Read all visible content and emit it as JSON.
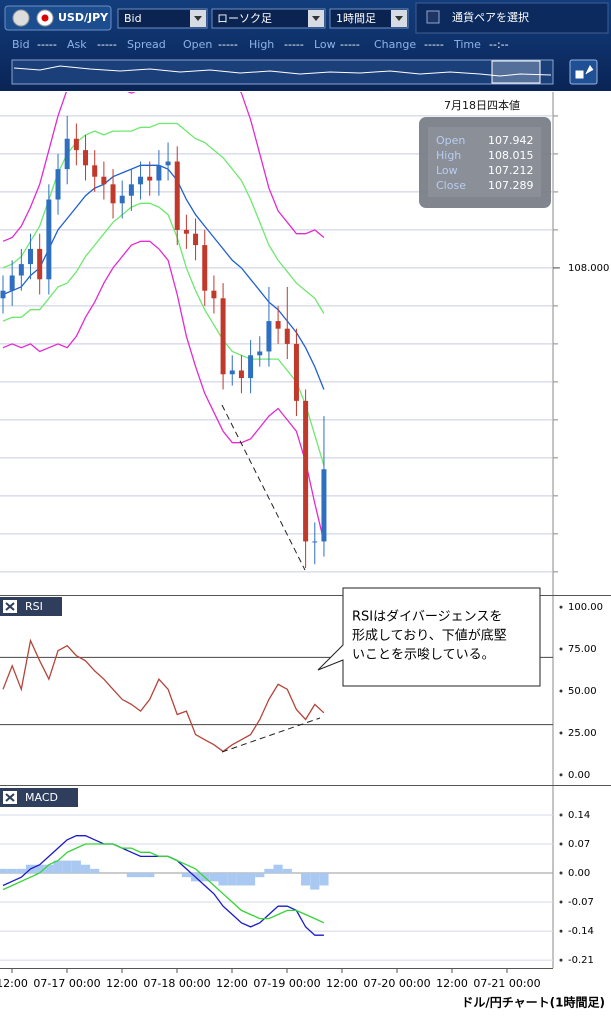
{
  "toolbar": {
    "pair": "USD/JPY",
    "price_type": "Bid",
    "chart_style": "ローソク足",
    "interval": "1時間足",
    "pair_select": "通貨ペアを選択",
    "quotes": [
      {
        "label": "Bid",
        "value": "-----"
      },
      {
        "label": "Ask",
        "value": "-----"
      },
      {
        "label": "Spread",
        "value": ""
      },
      {
        "label": "Open",
        "value": "-----"
      },
      {
        "label": "High",
        "value": "-----"
      },
      {
        "label": "Low",
        "value": "-----"
      },
      {
        "label": "Change",
        "value": "-----"
      },
      {
        "label": "Time",
        "value": "--:--"
      }
    ]
  },
  "info_box": {
    "title": "7月18日四本値",
    "rows": [
      {
        "label": "Open",
        "value": "107.942"
      },
      {
        "label": "High",
        "value": "108.015"
      },
      {
        "label": "Low",
        "value": "107.212"
      },
      {
        "label": "Close",
        "value": "107.289"
      }
    ]
  },
  "annotation": {
    "lines": [
      "RSIはダイバージェンスを",
      "形成しており、下値が底堅",
      "いことを示唆している。"
    ]
  },
  "x_axis": {
    "labels": [
      "12:00",
      "07-17 00:00",
      "12:00",
      "07-18 00:00",
      "12:00",
      "07-19 00:00",
      "12:00",
      "07-20 00:00",
      "12:00",
      "07-21 00:00"
    ]
  },
  "footer": "ドル/円チャート(1時間足)",
  "chart_data": [
    {
      "type": "candlestick",
      "up_color": "#2f6fbf",
      "down_color": "#c0392b",
      "open": [
        107.92,
        107.94,
        107.98,
        108.01,
        108.05,
        107.97,
        108.18,
        108.26,
        108.34,
        108.31,
        108.27,
        108.24,
        108.22,
        108.17,
        108.19,
        108.22,
        108.24,
        108.23,
        108.27,
        108.28,
        108.1,
        108.09,
        108.06,
        107.94,
        107.92,
        107.72,
        107.73,
        107.71,
        107.77,
        107.78,
        107.86,
        107.84,
        107.8,
        107.65,
        107.28,
        107.28
      ],
      "high": [
        107.98,
        108.02,
        108.05,
        108.09,
        108.09,
        108.22,
        108.3,
        108.4,
        108.38,
        108.35,
        108.31,
        108.28,
        108.26,
        108.23,
        108.26,
        108.28,
        108.28,
        108.31,
        108.33,
        108.32,
        108.14,
        108.13,
        108.1,
        107.98,
        107.96,
        107.77,
        107.77,
        107.81,
        107.82,
        107.95,
        107.9,
        107.95,
        107.84,
        107.68,
        107.33,
        107.61
      ],
      "low": [
        107.88,
        107.9,
        107.94,
        107.97,
        107.93,
        107.93,
        108.14,
        108.22,
        108.27,
        108.23,
        108.2,
        108.18,
        108.13,
        108.13,
        108.15,
        108.18,
        108.19,
        108.19,
        108.23,
        108.06,
        108.05,
        108.02,
        107.9,
        107.88,
        107.68,
        107.69,
        107.67,
        107.67,
        107.74,
        107.74,
        107.8,
        107.76,
        107.61,
        107.21,
        107.22,
        107.24
      ],
      "close": [
        107.94,
        107.98,
        108.01,
        108.05,
        107.97,
        108.18,
        108.26,
        108.34,
        108.31,
        108.27,
        108.24,
        108.22,
        108.17,
        108.19,
        108.22,
        108.24,
        108.23,
        108.27,
        108.28,
        108.1,
        108.09,
        108.06,
        107.94,
        107.92,
        107.72,
        107.73,
        107.71,
        107.77,
        107.78,
        107.86,
        107.84,
        107.8,
        107.65,
        107.28,
        107.28,
        107.47
      ],
      "overlays": [
        {
          "color": "#e22bd0",
          "values": [
            108.07,
            108.08,
            108.11,
            108.16,
            108.22,
            108.31,
            108.4,
            108.47,
            108.5,
            108.51,
            108.51,
            108.48,
            108.48,
            108.47,
            108.46,
            108.47,
            108.47,
            108.49,
            108.5,
            108.53,
            108.54,
            108.54,
            108.55,
            108.54,
            108.53,
            108.5,
            108.46,
            108.39,
            108.3,
            108.21,
            108.15,
            108.12,
            108.09,
            108.09,
            108.1,
            108.08
          ]
        },
        {
          "color": "#6ee86e",
          "values": [
            108.0,
            108.01,
            108.03,
            108.07,
            108.11,
            108.18,
            108.25,
            108.3,
            108.33,
            108.35,
            108.36,
            108.35,
            108.36,
            108.36,
            108.36,
            108.37,
            108.37,
            108.38,
            108.38,
            108.38,
            108.36,
            108.34,
            108.33,
            108.31,
            108.29,
            108.26,
            108.23,
            108.18,
            108.12,
            108.06,
            108.02,
            107.99,
            107.96,
            107.94,
            107.92,
            107.88
          ]
        },
        {
          "color": "#1f5fd0",
          "values": [
            107.93,
            107.94,
            107.95,
            107.98,
            108.0,
            108.05,
            108.1,
            108.13,
            108.16,
            108.19,
            108.21,
            108.22,
            108.24,
            108.25,
            108.26,
            108.27,
            108.27,
            108.27,
            108.26,
            108.23,
            108.18,
            108.14,
            108.11,
            108.08,
            108.05,
            108.02,
            108.0,
            107.97,
            107.94,
            107.91,
            107.89,
            107.86,
            107.83,
            107.79,
            107.74,
            107.68
          ]
        },
        {
          "color": "#6ee86e",
          "values": [
            107.86,
            107.87,
            107.87,
            107.89,
            107.89,
            107.92,
            107.95,
            107.96,
            107.99,
            108.03,
            108.06,
            108.09,
            108.12,
            108.14,
            108.16,
            108.17,
            108.17,
            108.16,
            108.14,
            108.08,
            108.0,
            107.94,
            107.89,
            107.85,
            107.81,
            107.78,
            107.77,
            107.76,
            107.76,
            107.76,
            107.76,
            107.73,
            107.7,
            107.64,
            107.56,
            107.48
          ]
        },
        {
          "color": "#e22bd0",
          "values": [
            107.79,
            107.8,
            107.79,
            107.8,
            107.78,
            107.79,
            107.8,
            107.79,
            107.82,
            107.87,
            107.91,
            107.96,
            108.0,
            108.03,
            108.06,
            108.07,
            108.07,
            108.05,
            108.02,
            107.93,
            107.82,
            107.74,
            107.67,
            107.62,
            107.57,
            107.54,
            107.54,
            107.55,
            107.58,
            107.61,
            107.63,
            107.6,
            107.57,
            107.49,
            107.38,
            107.28
          ]
        }
      ],
      "ylim": [
        107.139,
        108.463
      ],
      "yticks": [
        {
          "value": 108,
          "label": "108.000"
        }
      ],
      "grid_values": [
        107.2,
        107.3,
        107.4,
        107.5,
        107.6,
        107.7,
        107.8,
        107.9,
        108.0,
        108.1,
        108.2,
        108.3,
        108.4
      ],
      "grid": true
    },
    {
      "type": "line",
      "title": "RSI",
      "series": [
        {
          "color": "#b5443a",
          "values": [
            51,
            65,
            51,
            80,
            68,
            57,
            74,
            77,
            71,
            68,
            62,
            57,
            51,
            45,
            42,
            38,
            45,
            57,
            51,
            36,
            38,
            24,
            21,
            18,
            14,
            18,
            21,
            24,
            33,
            45,
            54,
            51,
            39,
            33,
            42,
            37
          ]
        }
      ],
      "ylim": [
        -6,
        105.4
      ],
      "yticks": [
        {
          "value": 100,
          "label": "100.00"
        },
        {
          "value": 75,
          "label": "75.00"
        },
        {
          "value": 50,
          "label": "50.00"
        },
        {
          "value": 25,
          "label": "25.00"
        },
        {
          "value": 0,
          "label": "0.00"
        }
      ],
      "levels": [
        70,
        30
      ]
    },
    {
      "type": "line",
      "title": "MACD",
      "series": [
        {
          "type": "bar",
          "color": "#a9c9f2",
          "values": [
            0.01,
            0.01,
            0.01,
            0.02,
            0.02,
            0.02,
            0.03,
            0.03,
            0.03,
            0.02,
            0.01,
            0.0,
            0.0,
            0.0,
            -0.01,
            -0.01,
            -0.01,
            0.0,
            0.0,
            0.0,
            -0.01,
            -0.02,
            -0.02,
            -0.02,
            -0.03,
            -0.03,
            -0.03,
            -0.03,
            -0.01,
            0.01,
            0.02,
            0.01,
            0.0,
            -0.03,
            -0.04,
            -0.03
          ]
        },
        {
          "color": "#1a1ac8",
          "values": [
            -0.03,
            -0.02,
            -0.01,
            0.01,
            0.02,
            0.04,
            0.06,
            0.08,
            0.09,
            0.09,
            0.08,
            0.07,
            0.07,
            0.06,
            0.05,
            0.04,
            0.04,
            0.04,
            0.04,
            0.03,
            0.01,
            -0.01,
            -0.03,
            -0.05,
            -0.08,
            -0.1,
            -0.12,
            -0.13,
            -0.12,
            -0.1,
            -0.08,
            -0.08,
            -0.09,
            -0.13,
            -0.15,
            -0.15
          ]
        },
        {
          "color": "#35d435",
          "values": [
            -0.04,
            -0.03,
            -0.02,
            -0.01,
            0.0,
            0.02,
            0.03,
            0.05,
            0.06,
            0.07,
            0.07,
            0.07,
            0.07,
            0.06,
            0.06,
            0.05,
            0.05,
            0.04,
            0.04,
            0.03,
            0.02,
            0.01,
            -0.01,
            -0.03,
            -0.05,
            -0.07,
            -0.09,
            -0.1,
            -0.11,
            -0.11,
            -0.1,
            -0.09,
            -0.09,
            -0.1,
            -0.11,
            -0.12
          ]
        }
      ],
      "ylim": [
        -0.229,
        0.205
      ],
      "yticks": [
        0.14,
        0.07,
        {
          "value": 0,
          "label": "0.00"
        },
        -0.07,
        -0.14,
        -0.21
      ],
      "grid": true
    }
  ]
}
